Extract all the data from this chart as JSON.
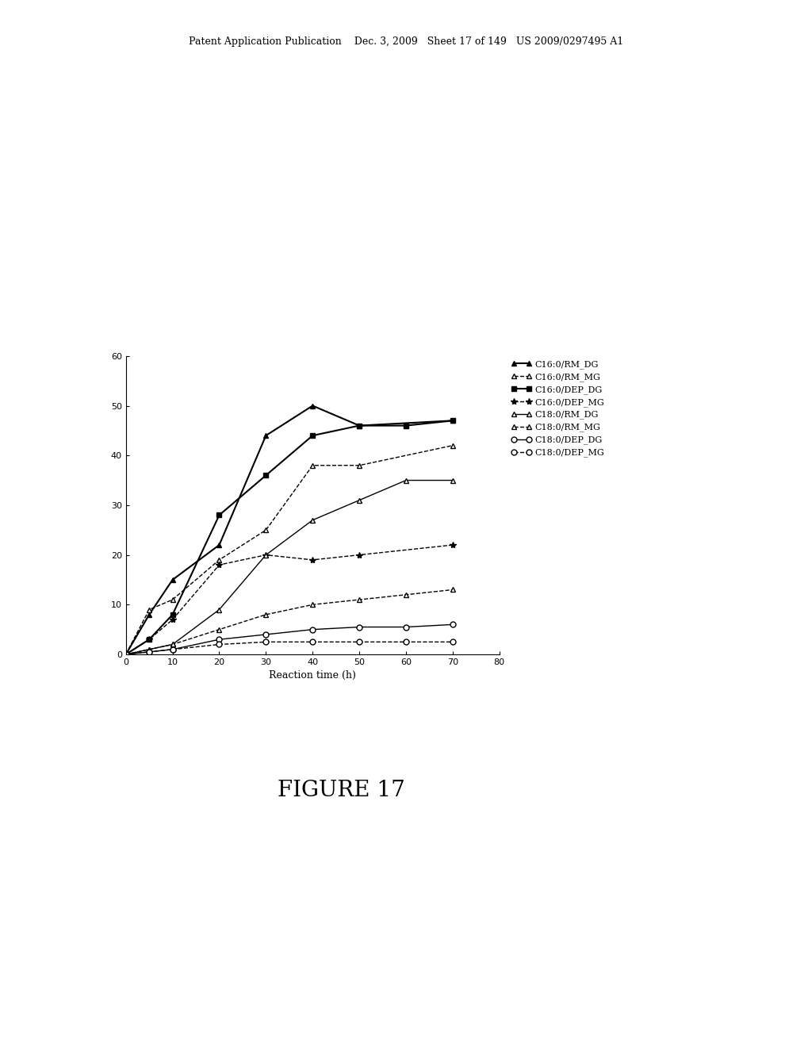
{
  "header_text": "Patent Application Publication    Dec. 3, 2009   Sheet 17 of 149   US 2009/0297495 A1",
  "figure_title": "FIGURE 17",
  "xlabel": "Reaction time (h)",
  "xlim": [
    0,
    80
  ],
  "ylim": [
    0,
    60
  ],
  "xticks": [
    0,
    10,
    20,
    30,
    40,
    50,
    60,
    70,
    80
  ],
  "yticks": [
    0,
    10,
    20,
    30,
    40,
    50,
    60
  ],
  "series": [
    {
      "label": "C16:0/RM_DG",
      "x": [
        0,
        5,
        10,
        20,
        30,
        40,
        50,
        70
      ],
      "y": [
        0,
        8,
        15,
        22,
        44,
        50,
        46,
        47
      ],
      "color": "#000000",
      "linestyle": "-",
      "marker": "^",
      "markerfacecolor": "#000000",
      "markersize": 5,
      "linewidth": 1.5
    },
    {
      "label": "C16:0/RM_MG",
      "x": [
        0,
        5,
        10,
        20,
        30,
        40,
        50,
        70
      ],
      "y": [
        0,
        9,
        11,
        19,
        25,
        38,
        38,
        42
      ],
      "color": "#000000",
      "linestyle": "--",
      "marker": "^",
      "markerfacecolor": "white",
      "markersize": 5,
      "linewidth": 1.0
    },
    {
      "label": "C16:0/DEP_DG",
      "x": [
        0,
        5,
        10,
        20,
        30,
        40,
        50,
        60,
        70
      ],
      "y": [
        0,
        3,
        8,
        28,
        36,
        44,
        46,
        46,
        47
      ],
      "color": "#000000",
      "linestyle": "-",
      "marker": "s",
      "markerfacecolor": "#000000",
      "markersize": 5,
      "linewidth": 1.5
    },
    {
      "label": "C16:0/DEP_MG",
      "x": [
        0,
        5,
        10,
        20,
        30,
        40,
        50,
        70
      ],
      "y": [
        0,
        3,
        7,
        18,
        20,
        19,
        20,
        22
      ],
      "color": "#000000",
      "linestyle": "--",
      "marker": "*",
      "markerfacecolor": "#000000",
      "markersize": 6,
      "linewidth": 1.0
    },
    {
      "label": "C18:0/RM_DG",
      "x": [
        0,
        5,
        10,
        20,
        30,
        40,
        50,
        60,
        70
      ],
      "y": [
        0,
        1,
        2,
        9,
        20,
        27,
        31,
        35,
        35
      ],
      "color": "#000000",
      "linestyle": "-",
      "marker": "^",
      "markerfacecolor": "white",
      "markersize": 5,
      "linewidth": 1.0
    },
    {
      "label": "C18:0/RM_MG",
      "x": [
        0,
        5,
        10,
        20,
        30,
        40,
        50,
        60,
        70
      ],
      "y": [
        0,
        1,
        2,
        5,
        8,
        10,
        11,
        12,
        13
      ],
      "color": "#000000",
      "linestyle": "--",
      "marker": "^",
      "markerfacecolor": "white",
      "markersize": 5,
      "linewidth": 1.0
    },
    {
      "label": "C18:0/DEP_DG",
      "x": [
        0,
        5,
        10,
        20,
        30,
        40,
        50,
        60,
        70
      ],
      "y": [
        0,
        0.5,
        1,
        3,
        4,
        5,
        5.5,
        5.5,
        6
      ],
      "color": "#000000",
      "linestyle": "-",
      "marker": "o",
      "markerfacecolor": "white",
      "markersize": 5,
      "linewidth": 1.0
    },
    {
      "label": "C18:0/DEP_MG",
      "x": [
        0,
        5,
        10,
        20,
        30,
        40,
        50,
        60,
        70
      ],
      "y": [
        0,
        0.5,
        1,
        2,
        2.5,
        2.5,
        2.5,
        2.5,
        2.5
      ],
      "color": "#000000",
      "linestyle": "--",
      "marker": "o",
      "markerfacecolor": "white",
      "markersize": 5,
      "linewidth": 1.0
    }
  ],
  "legend_labels": [
    "C16:0/RM_DG",
    "C16:0/RM_MG",
    "C16:0/DEP_DG",
    "C16:0/DEP_MG",
    "C18:0/RM_DG",
    "C18:0/RM_MG",
    "C18:0/DEP_DG",
    "C18:0/DEP_MG"
  ]
}
